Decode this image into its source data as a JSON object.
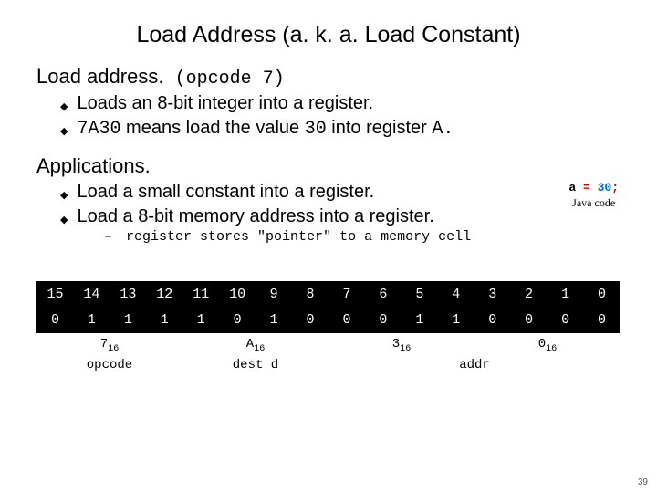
{
  "title": "Load Address (a. k. a. Load Constant)",
  "sections": {
    "load_address": {
      "heading": "Load address.",
      "opcode": "(opcode  7)",
      "bullets": [
        "Loads an 8-bit integer into a register.",
        "7A30 means load the value 30 into register A."
      ],
      "code_prefix": "7A30",
      "code_value": "30",
      "code_reg": "A."
    },
    "applications": {
      "heading": "Applications.",
      "bullets": [
        "Load a small constant into a register.",
        "Load a 8-bit memory address into a register."
      ],
      "sub": "register stores \"pointer\" to a memory cell"
    }
  },
  "codebox": {
    "var": "a",
    "eq": "=",
    "val": "30",
    "semi": ";",
    "caption": "Java code",
    "var_color": "#000000",
    "eq_color": "#cc0000",
    "val_color": "#0066cc"
  },
  "bit_table": {
    "header": [
      "15",
      "14",
      "13",
      "12",
      "11",
      "10",
      "9",
      "8",
      "7",
      "6",
      "5",
      "4",
      "3",
      "2",
      "1",
      "0"
    ],
    "bits": [
      "0",
      "1",
      "1",
      "1",
      "1",
      "0",
      "1",
      "0",
      "0",
      "0",
      "1",
      "1",
      "0",
      "0",
      "0",
      "0"
    ],
    "cell_bg": "#000000",
    "cell_fg": "#ffffff",
    "groups": [
      {
        "span": 4,
        "hex": "7",
        "label": "opcode"
      },
      {
        "span": 4,
        "hex": "A",
        "label": "dest d"
      },
      {
        "span": 4,
        "hex": "3",
        "label": ""
      },
      {
        "span": 4,
        "hex": "0",
        "label": ""
      }
    ],
    "addr_label": "addr",
    "hex_sub": "16"
  },
  "pagenum": "39"
}
